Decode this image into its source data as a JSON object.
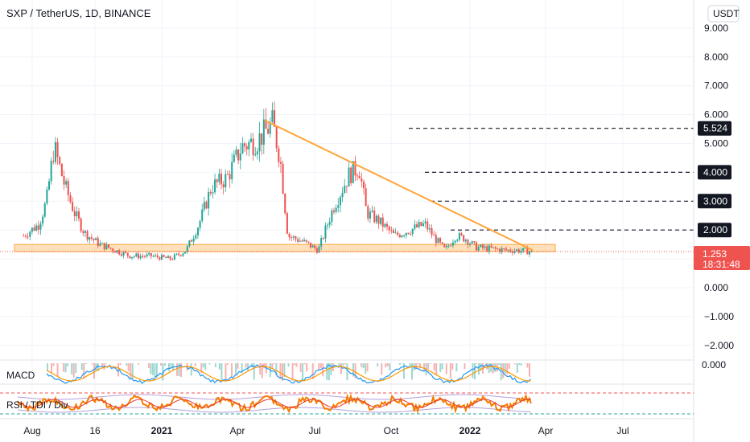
{
  "header": {
    "title": "SXP / TetherUS, 1D, BINANCE",
    "currency_button": "USDT"
  },
  "price_panel": {
    "current_price": "1.253",
    "countdown": "18:31:48",
    "level_labels": [
      "5.524",
      "4.000",
      "3.000",
      "2.000"
    ]
  },
  "indicators": {
    "macd_label": "MACD",
    "macd_scale_label": "0.000",
    "rsi_label": "RSI / TDI / Div"
  },
  "colors": {
    "up": "#26a69a",
    "down": "#ef5350",
    "trendline": "#ffa53a",
    "support_zone": "#ffa53a",
    "price_tag": "#ef5350",
    "level_tag": "#131722"
  },
  "chart_data": {
    "type": "candlestick",
    "title": "SXP / TetherUS, 1D, BINANCE",
    "ylim": [
      -2.5,
      9.5
    ],
    "y_ticks": [
      "9.000",
      "8.000",
      "7.000",
      "6.000",
      "5.000",
      "4.000",
      "3.000",
      "2.000",
      "1.000",
      "0.000",
      "−1.000",
      "−2.000"
    ],
    "x_ticks": [
      "Aug",
      "16",
      "2021",
      "Apr",
      "Jul",
      "Oct",
      "2022",
      "Apr",
      "Jul"
    ],
    "price_path": [
      [
        0.0,
        1.8
      ],
      [
        0.03,
        2.2
      ],
      [
        0.045,
        3.0
      ],
      [
        0.06,
        4.9
      ],
      [
        0.08,
        3.6
      ],
      [
        0.1,
        2.6
      ],
      [
        0.12,
        1.9
      ],
      [
        0.15,
        1.5
      ],
      [
        0.18,
        1.3
      ],
      [
        0.21,
        1.1
      ],
      [
        0.25,
        1.1
      ],
      [
        0.29,
        1.0
      ],
      [
        0.32,
        1.3
      ],
      [
        0.345,
        2.2
      ],
      [
        0.37,
        3.5
      ],
      [
        0.4,
        3.8
      ],
      [
        0.43,
        4.9
      ],
      [
        0.46,
        5.1
      ],
      [
        0.49,
        5.7
      ],
      [
        0.505,
        4.5
      ],
      [
        0.52,
        1.8
      ],
      [
        0.55,
        1.6
      ],
      [
        0.58,
        1.3
      ],
      [
        0.61,
        2.8
      ],
      [
        0.64,
        3.9
      ],
      [
        0.66,
        4.2
      ],
      [
        0.675,
        2.6
      ],
      [
        0.7,
        2.3
      ],
      [
        0.73,
        1.8
      ],
      [
        0.76,
        2.0
      ],
      [
        0.79,
        2.2
      ],
      [
        0.81,
        1.7
      ],
      [
        0.83,
        1.3
      ],
      [
        0.85,
        1.8
      ],
      [
        0.87,
        1.7
      ],
      [
        0.89,
        1.4
      ],
      [
        0.92,
        1.35
      ],
      [
        0.95,
        1.3
      ],
      [
        0.97,
        1.3
      ],
      [
        1.0,
        1.253
      ]
    ],
    "current_price": 1.253,
    "resistance_levels": [
      5.524,
      4.0,
      3.0,
      2.0
    ],
    "trendline": {
      "from_price": 5.8,
      "to_price": 1.3
    },
    "support_zone": {
      "low": 1.25,
      "high": 1.5
    }
  }
}
